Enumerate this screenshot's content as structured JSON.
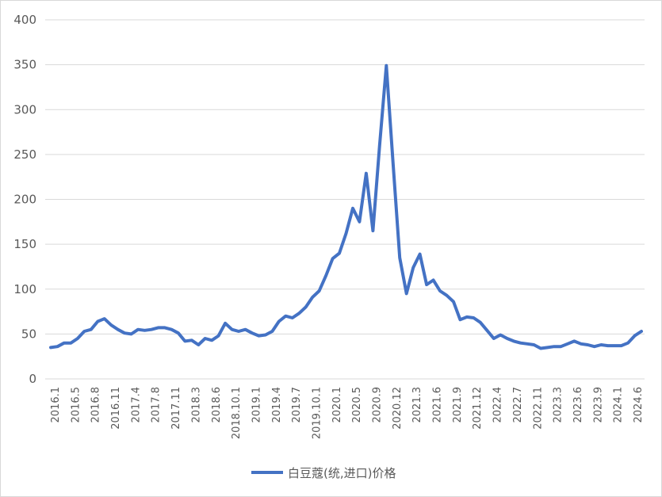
{
  "chart_data": {
    "type": "line",
    "title": "",
    "xlabel": "",
    "ylabel": "",
    "ylim": [
      0,
      400
    ],
    "yticks": [
      0,
      50,
      100,
      150,
      200,
      250,
      300,
      350,
      400
    ],
    "grid": true,
    "legend_position": "bottom",
    "series_color": "#4472c4",
    "x_tick_labels": [
      "2016.1",
      "2016.5",
      "2016.8",
      "2016.11",
      "2017.4",
      "2017.8",
      "2017.11",
      "2018.3",
      "2018.6",
      "2018.10.1",
      "2019.1",
      "2019.4",
      "2019.7",
      "2019.10.1",
      "2020.1",
      "2020.5",
      "2020.9",
      "2020.12",
      "2021.3",
      "2021.6",
      "2021.9",
      "2021.12",
      "2022.4",
      "2022.7",
      "2022.11",
      "2023.3",
      "2023.6",
      "2023.9",
      "2024.1",
      "2024.6"
    ],
    "series": [
      {
        "name": "白豆蔻(统,进口)价格",
        "values": [
          35,
          36,
          40,
          40,
          45,
          53,
          55,
          64,
          67,
          60,
          55,
          51,
          50,
          55,
          54,
          55,
          57,
          57,
          55,
          51,
          42,
          43,
          38,
          45,
          43,
          48,
          62,
          55,
          53,
          55,
          51,
          48,
          49,
          53,
          64,
          70,
          68,
          73,
          80,
          91,
          98,
          115,
          134,
          140,
          162,
          190,
          175,
          229,
          165,
          260,
          349,
          240,
          135,
          95,
          124,
          139,
          105,
          110,
          98,
          93,
          86,
          66,
          69,
          68,
          63,
          54,
          45,
          49,
          45,
          42,
          40,
          39,
          38,
          34,
          35,
          36,
          36,
          39,
          42,
          39,
          38,
          36,
          38,
          37,
          37,
          37,
          40,
          48,
          53
        ]
      }
    ]
  }
}
